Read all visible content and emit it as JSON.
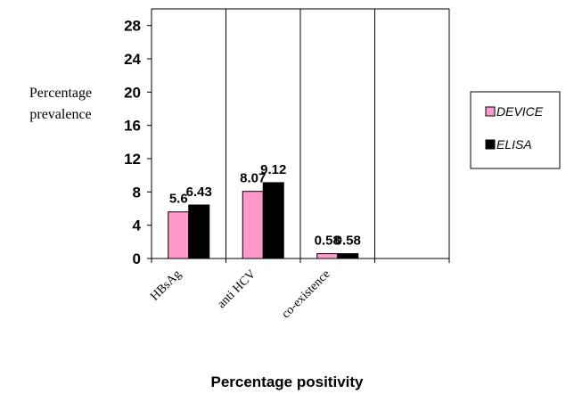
{
  "chart_data": {
    "type": "bar",
    "categories": [
      "HBsAg",
      "anti HCV",
      "co-existence",
      ""
    ],
    "series": [
      {
        "name": "DEVICE",
        "values": [
          5.6,
          8.07,
          0.58,
          null
        ],
        "labels": [
          "5.6",
          "8.07",
          "0.58",
          ""
        ],
        "color": "#ff99cc"
      },
      {
        "name": "ELISA",
        "values": [
          6.43,
          9.12,
          0.58,
          null
        ],
        "labels": [
          "6.43",
          "9.12",
          "0.58",
          ""
        ],
        "color": "#000000"
      }
    ],
    "yticks": [
      "0",
      "4",
      "8",
      "12",
      "16",
      "20",
      "24",
      "28"
    ],
    "ylim": [
      0,
      30
    ],
    "ylabel": [
      "Percentage",
      "prevalence"
    ],
    "xlabel": "Percentage positivity",
    "legend_position": "right",
    "grid": "vertical category separators"
  }
}
